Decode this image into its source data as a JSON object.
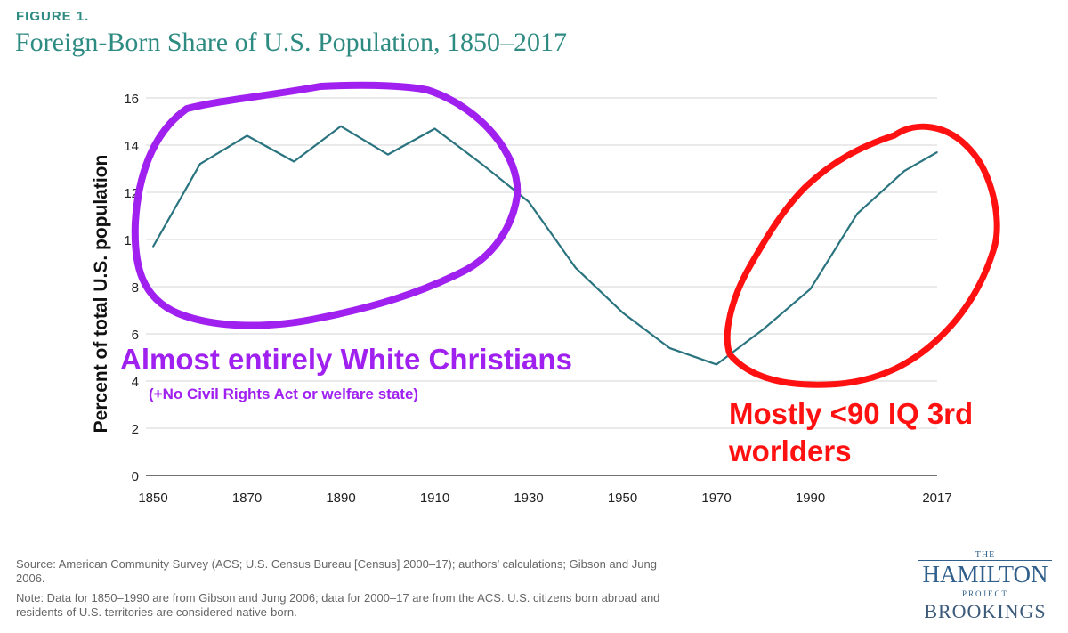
{
  "figure_label": "FIGURE 1.",
  "source_note": "Source: American Community Survey (ACS; U.S. Census Bureau [Census] 2000–17); authors’ calculations; Gibson and Jung 2006.",
  "data_note": "Note: Data for 1850–1990 are from Gibson and Jung 2006; data for 2000–17 are from the ACS. U.S. citizens born abroad and residents of U.S. territories are considered native-born.",
  "logo": {
    "the": "THE",
    "hamilton": "HAMILTON",
    "project": "PROJECT",
    "brookings": "BROOKINGS"
  },
  "annotations": {
    "purple_main": "Almost entirely White Christians",
    "purple_sub": "(+No Civil Rights Act or welfare state)",
    "red_main": "Mostly <90 IQ 3rd worlders",
    "purple_color": "#a020f0",
    "red_color": "#ff1111"
  },
  "chart_data": {
    "type": "line",
    "title": "Foreign-Born Share of U.S. Population, 1850–2017",
    "xlabel": "",
    "ylabel": "Percent of total U.S. population",
    "x": [
      1850,
      1860,
      1870,
      1880,
      1890,
      1900,
      1910,
      1920,
      1930,
      1940,
      1950,
      1960,
      1970,
      1980,
      1990,
      2000,
      2010,
      2017
    ],
    "series": [
      {
        "values": [
          9.7,
          13.2,
          14.4,
          13.3,
          14.8,
          13.6,
          14.7,
          13.2,
          11.6,
          8.8,
          6.9,
          5.4,
          4.7,
          6.2,
          7.9,
          11.1,
          12.9,
          13.7
        ],
        "color": "#2a7480"
      }
    ],
    "xticks": [
      "1850",
      "1870",
      "1890",
      "1910",
      "1930",
      "1950",
      "1970",
      "1990",
      "2017"
    ],
    "xtick_values": [
      1850,
      1870,
      1890,
      1910,
      1930,
      1950,
      1970,
      1990,
      2017
    ],
    "yticks": [
      0,
      2,
      4,
      6,
      8,
      10,
      12,
      14,
      16
    ],
    "xlim": [
      1850,
      2017
    ],
    "ylim": [
      0,
      16
    ],
    "grid": true
  }
}
